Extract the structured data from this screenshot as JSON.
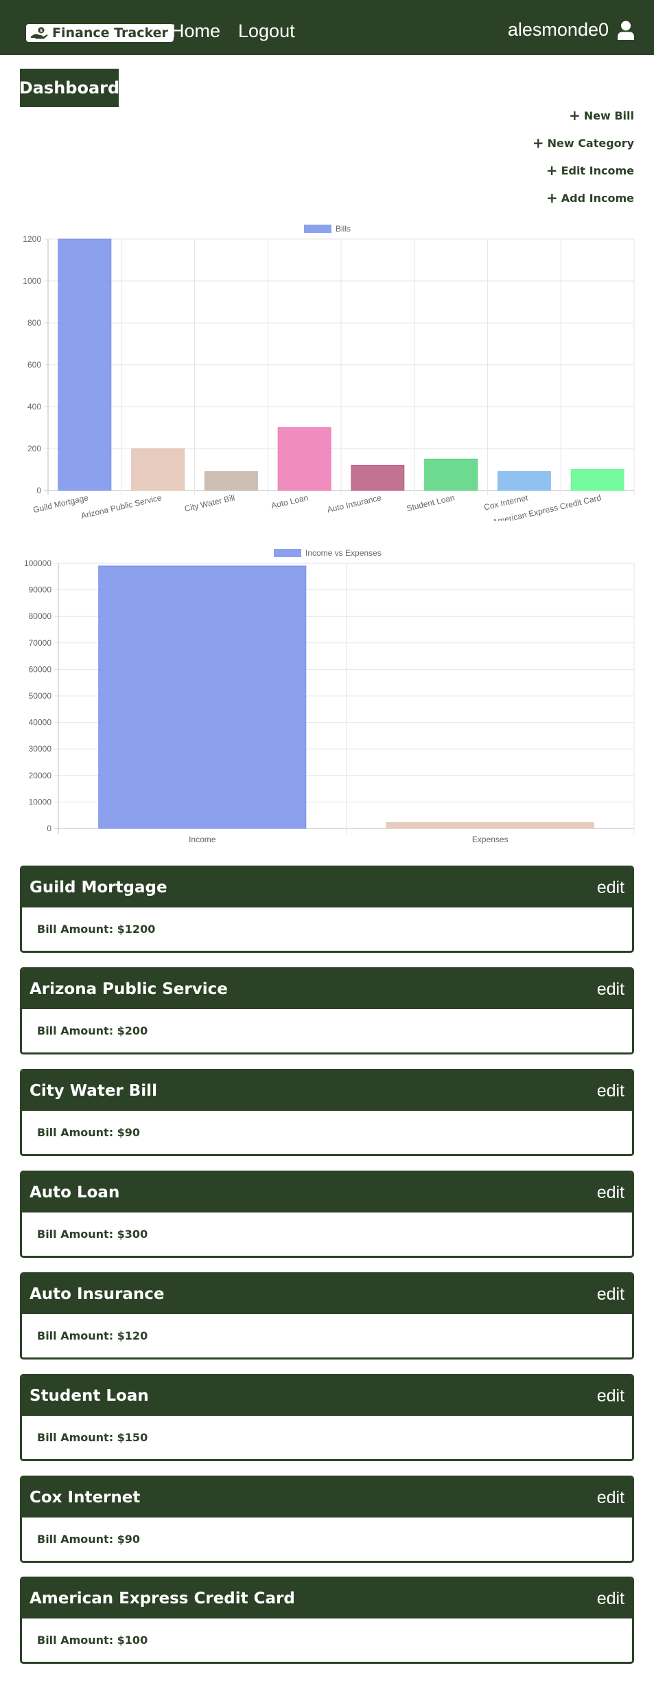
{
  "navbar": {
    "brand": "Finance Tracker",
    "home": "Home",
    "logout": "Logout",
    "username": "alesmonde0"
  },
  "dashboard": {
    "title": "Dashboard",
    "actions": [
      "New Bill",
      "New Category",
      "Edit Income",
      "Add Income"
    ]
  },
  "chart_data": [
    {
      "type": "bar",
      "legend": "Bills",
      "categories": [
        "Guild Mortgage",
        "Arizona Public Service",
        "City Water Bill",
        "Auto Loan",
        "Auto Insurance",
        "Student Loan",
        "Cox Internet",
        "American Express Credit Card"
      ],
      "values": [
        1200,
        200,
        90,
        300,
        120,
        150,
        90,
        100
      ],
      "colors": [
        "#7891ea",
        "#e2c2b3",
        "#c6b4a8",
        "#ee78b4",
        "#b85b7f",
        "#55d47e",
        "#7eb7ec",
        "#5ef98e"
      ],
      "yticks": [
        0,
        200,
        400,
        600,
        800,
        1000,
        1200
      ],
      "ylim": [
        0,
        1200
      ],
      "grid": true,
      "legend_position": "top"
    },
    {
      "type": "bar",
      "legend": "Income vs Expenses",
      "categories": [
        "Income",
        "Expenses"
      ],
      "values": [
        99000,
        2250
      ],
      "colors": [
        "#7891ea",
        "#e2c2b3"
      ],
      "yticks": [
        0,
        10000,
        20000,
        30000,
        40000,
        50000,
        60000,
        70000,
        80000,
        90000,
        100000
      ],
      "ylim": [
        0,
        100000
      ],
      "grid": true,
      "legend_position": "top"
    }
  ],
  "bills": [
    {
      "name": "Guild Mortgage",
      "edit": "edit",
      "amount": "Bill Amount: $1200"
    },
    {
      "name": "Arizona Public Service",
      "edit": "edit",
      "amount": "Bill Amount: $200"
    },
    {
      "name": "City Water Bill",
      "edit": "edit",
      "amount": "Bill Amount: $90"
    },
    {
      "name": "Auto Loan",
      "edit": "edit",
      "amount": "Bill Amount: $300"
    },
    {
      "name": "Auto Insurance",
      "edit": "edit",
      "amount": "Bill Amount: $120"
    },
    {
      "name": "Student Loan",
      "edit": "edit",
      "amount": "Bill Amount: $150"
    },
    {
      "name": "Cox Internet",
      "edit": "edit",
      "amount": "Bill Amount: $90"
    },
    {
      "name": "American Express Credit Card",
      "edit": "edit",
      "amount": "Bill Amount: $100"
    }
  ],
  "colors": {
    "primary": "#2c4227",
    "background": "#ffffff"
  }
}
